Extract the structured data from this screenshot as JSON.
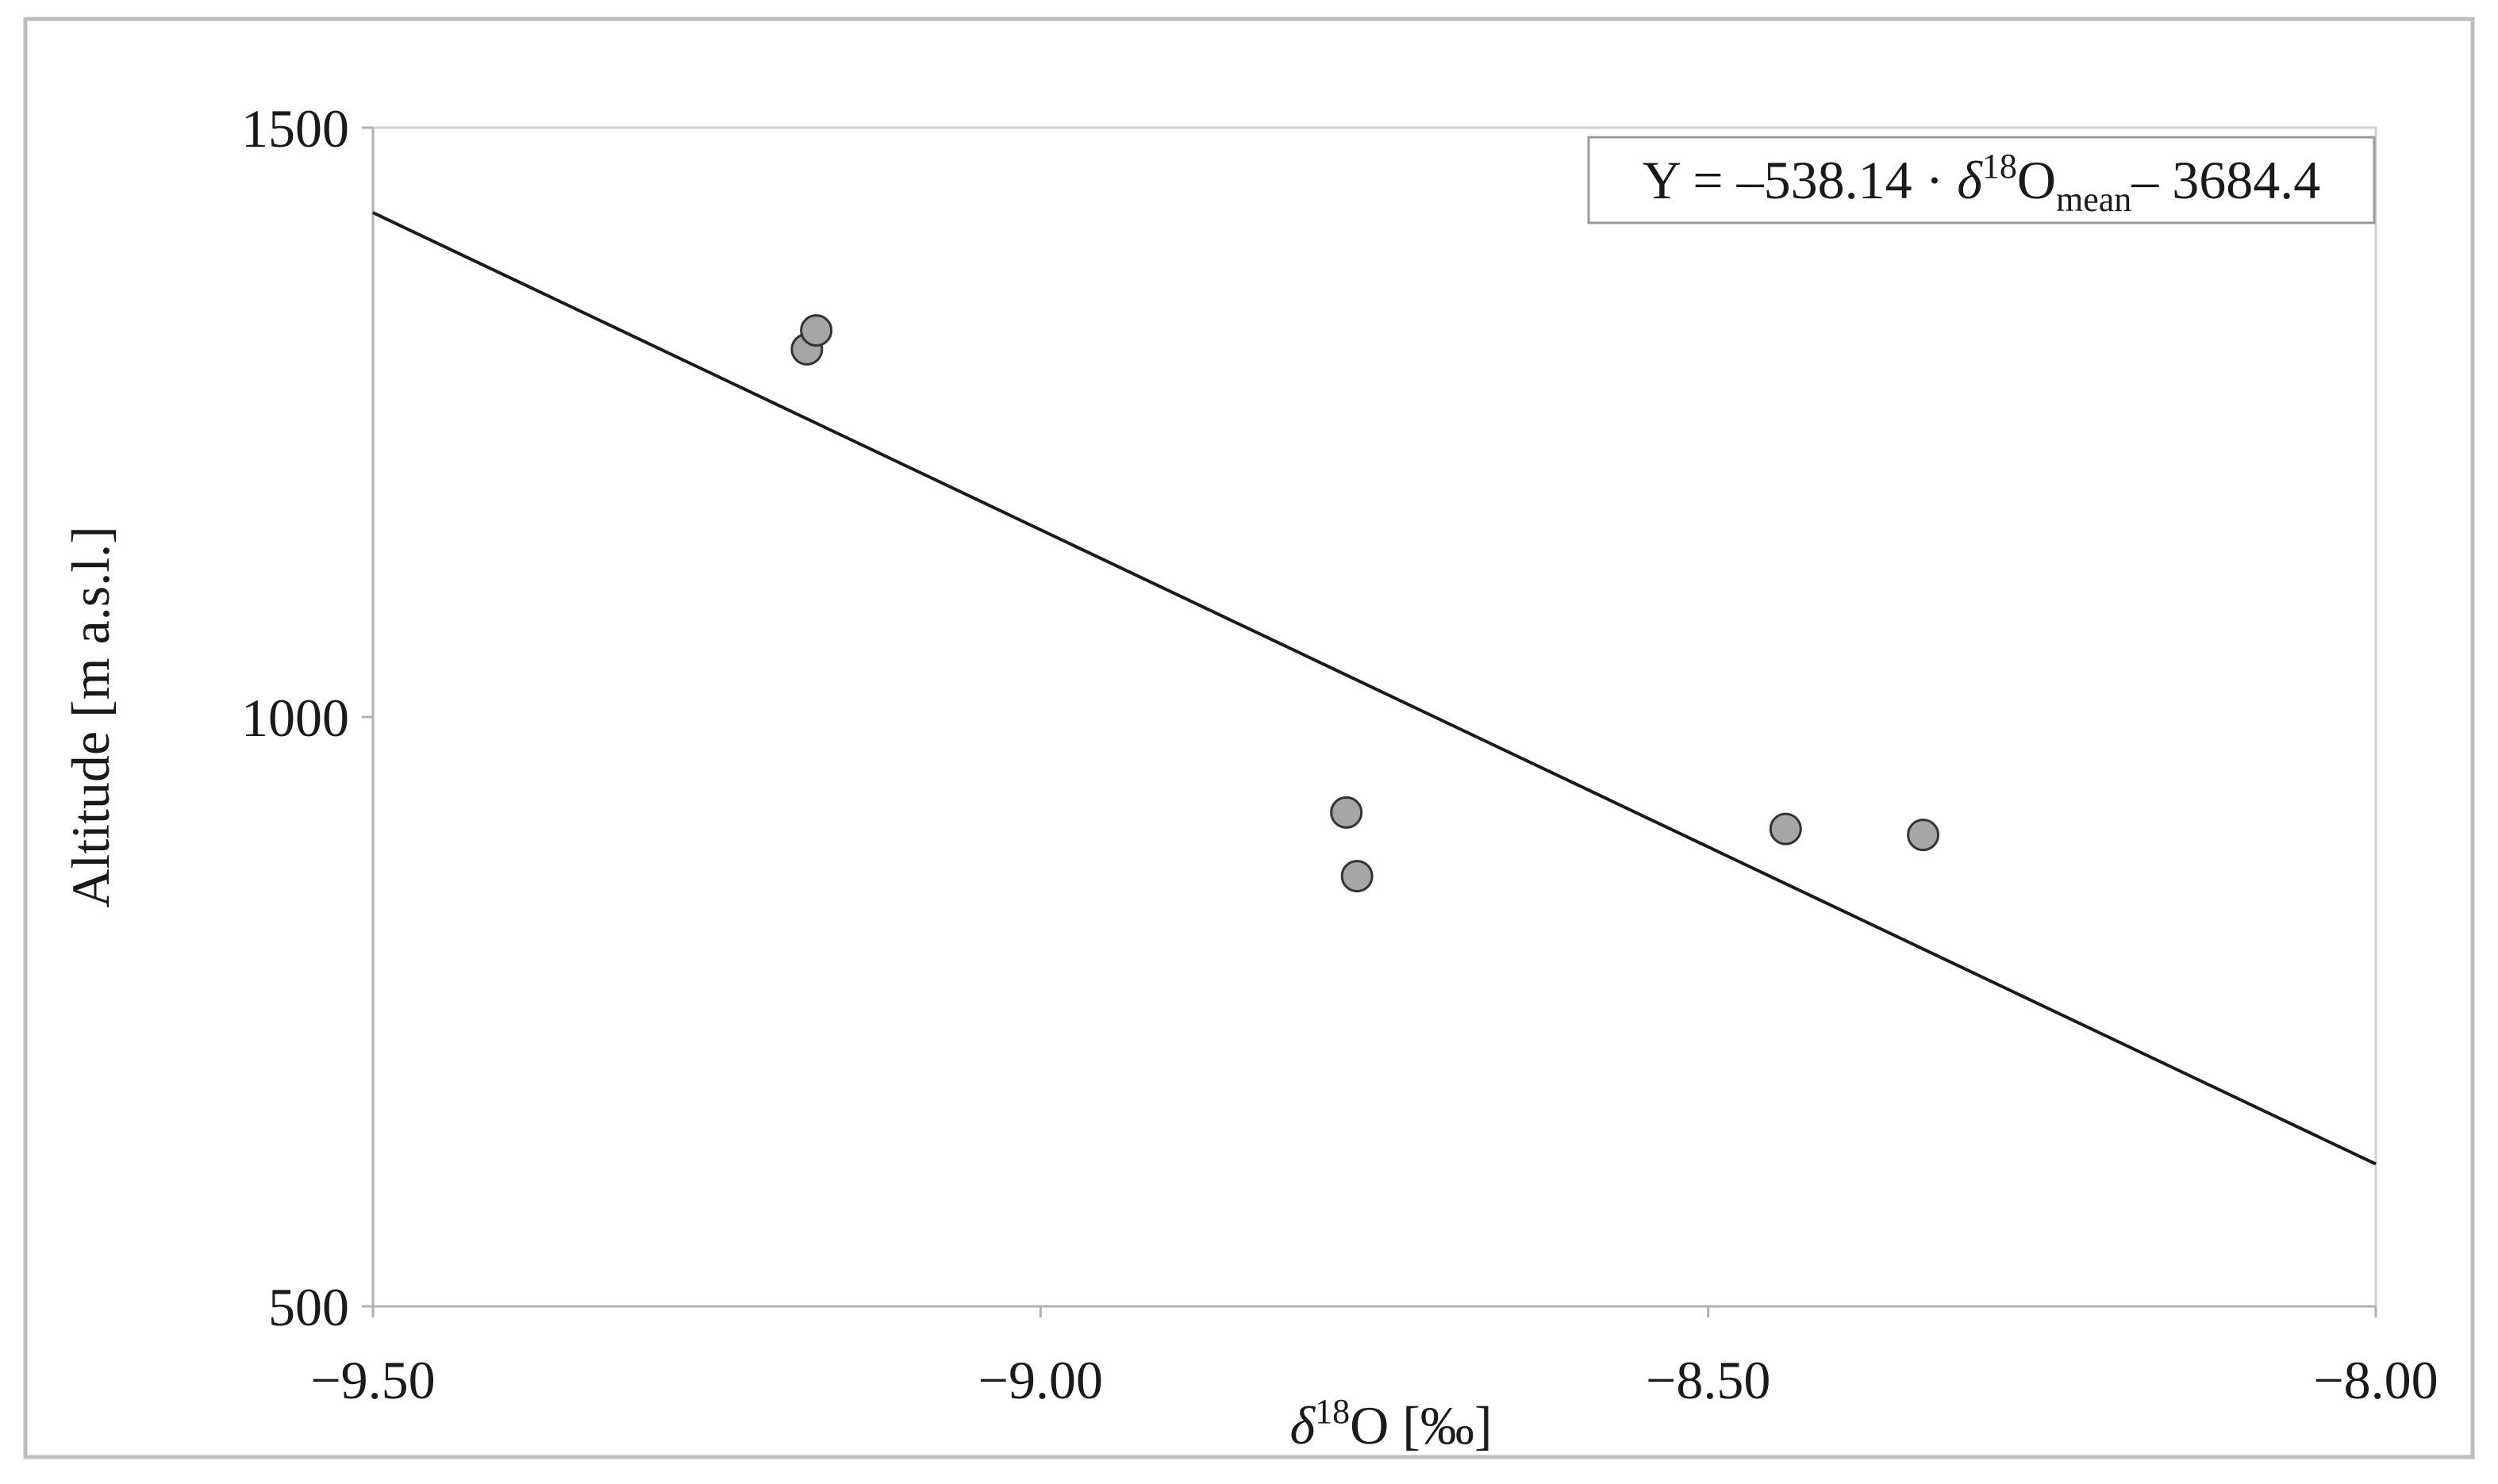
{
  "chart_data": {
    "type": "scatter",
    "x_label": {
      "parts": [
        "δ",
        "18",
        "O [‰]"
      ]
    },
    "y_label": "Altitude [m a.s.l.]",
    "equation": {
      "parts": [
        "Y = –538.14 · ",
        "δ",
        "18",
        "O",
        "mean",
        "– 3684.4"
      ]
    },
    "x": [
      -9.175,
      -9.168,
      -8.771,
      -8.763,
      -8.442,
      -8.339
    ],
    "series": [
      {
        "values": [
          1312,
          1328,
          919,
          865,
          905,
          900
        ],
        "color": "#a6a6a6"
      }
    ],
    "trendline": {
      "slope": -538.14,
      "intercept": -3684.4,
      "color": "#1a1a1a"
    },
    "xlim": [
      -9.5,
      -8.0
    ],
    "ylim": [
      500,
      1500
    ],
    "xticks": [
      {
        "value": -9.5,
        "label": "−9.50"
      },
      {
        "value": -9.0,
        "label": "−9.00"
      },
      {
        "value": -8.5,
        "label": "−8.50"
      },
      {
        "value": -8.0,
        "label": "−8.00"
      }
    ],
    "yticks": [
      500,
      1000,
      1500
    ]
  }
}
